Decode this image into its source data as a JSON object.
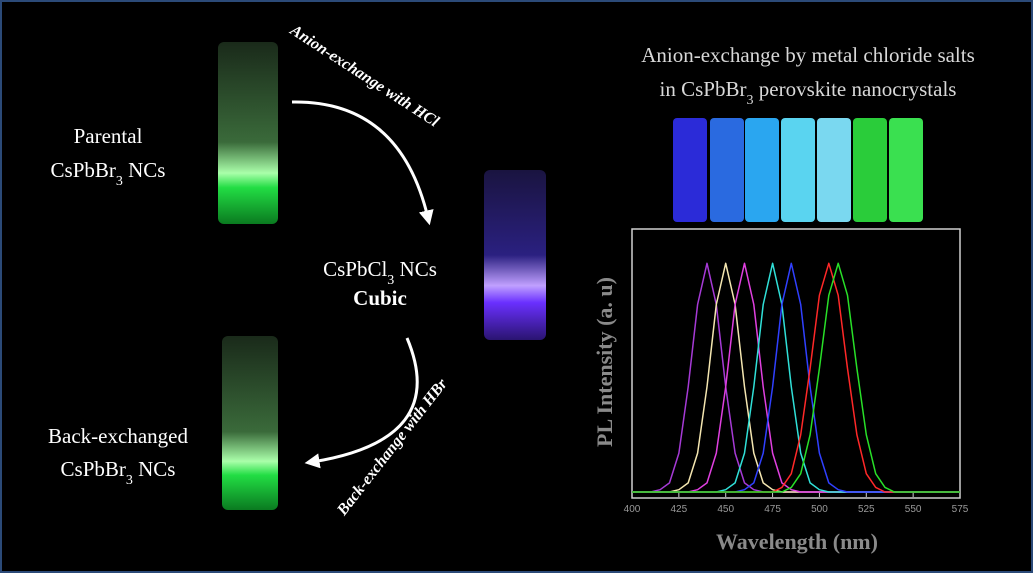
{
  "labels": {
    "arrow_top": "Anion-exchange with HCl",
    "arrow_bottom": "Back-exchange with HBr",
    "parental_line1": "Parental",
    "parental_line2": [
      "CsPbBr",
      "3",
      " NCs"
    ],
    "cubic_line1": [
      "CsPbCl",
      "3",
      " NCs"
    ],
    "cubic_line2": "Cubic",
    "back_line1": "Back-exchanged",
    "back_line2": [
      "CsPbBr",
      "3",
      " NCs"
    ]
  },
  "chart_data": {
    "type": "line",
    "title": "Anion-exchange by metal chloride salts",
    "subtitle": [
      "in CsPbBr",
      "3",
      " perovskite nanocrystals"
    ],
    "x_label": "Wavelength (nm)",
    "y_label": "PL Intensity (a. u)",
    "x": [
      400,
      405,
      410,
      415,
      420,
      425,
      430,
      435,
      440,
      445,
      450,
      455,
      460,
      465,
      470,
      475,
      480,
      485,
      490,
      495,
      500,
      505,
      510,
      515,
      520,
      525,
      530,
      535,
      540,
      545,
      550,
      555,
      560,
      565,
      570,
      575
    ],
    "xlim": [
      400,
      575
    ],
    "xticks": [
      400,
      425,
      450,
      475,
      500,
      525,
      550,
      575
    ],
    "ylim": [
      0,
      1.15
    ],
    "series": [
      {
        "color": "#a63ad6",
        "values": [
          0,
          0,
          0,
          0.01,
          0.04,
          0.17,
          0.46,
          0.82,
          1,
          0.82,
          0.46,
          0.17,
          0.04,
          0.01,
          0,
          0,
          0,
          0,
          0,
          0,
          0,
          0,
          0,
          0,
          0,
          0,
          0,
          0,
          0,
          0,
          0,
          0,
          0,
          0,
          0,
          0
        ]
      },
      {
        "color": "#f4e6b0",
        "values": [
          0,
          0,
          0,
          0,
          0,
          0.01,
          0.04,
          0.17,
          0.46,
          0.82,
          1,
          0.82,
          0.46,
          0.17,
          0.04,
          0.01,
          0,
          0,
          0,
          0,
          0,
          0,
          0,
          0,
          0,
          0,
          0,
          0,
          0,
          0,
          0,
          0,
          0,
          0,
          0,
          0
        ]
      },
      {
        "color": "#e040e0",
        "values": [
          0,
          0,
          0,
          0,
          0,
          0,
          0,
          0.01,
          0.04,
          0.17,
          0.46,
          0.82,
          1,
          0.82,
          0.46,
          0.17,
          0.04,
          0.01,
          0,
          0,
          0,
          0,
          0,
          0,
          0,
          0,
          0,
          0,
          0,
          0,
          0,
          0,
          0,
          0,
          0,
          0
        ]
      },
      {
        "color": "#30e0d8",
        "values": [
          0,
          0,
          0,
          0,
          0,
          0,
          0,
          0,
          0,
          0,
          0.01,
          0.04,
          0.17,
          0.46,
          0.82,
          1,
          0.82,
          0.46,
          0.17,
          0.04,
          0.01,
          0,
          0,
          0,
          0,
          0,
          0,
          0,
          0,
          0,
          0,
          0,
          0,
          0,
          0,
          0
        ]
      },
      {
        "color": "#3040ff",
        "values": [
          0,
          0,
          0,
          0,
          0,
          0,
          0,
          0,
          0,
          0,
          0,
          0,
          0.01,
          0.04,
          0.17,
          0.46,
          0.82,
          1,
          0.82,
          0.46,
          0.17,
          0.04,
          0.01,
          0,
          0,
          0,
          0,
          0,
          0,
          0,
          0,
          0,
          0,
          0,
          0,
          0
        ]
      },
      {
        "color": "#ff2828",
        "values": [
          0,
          0,
          0,
          0,
          0,
          0,
          0,
          0,
          0,
          0,
          0,
          0,
          0,
          0,
          0,
          0,
          0.02,
          0.08,
          0.25,
          0.54,
          0.86,
          1,
          0.86,
          0.54,
          0.25,
          0.08,
          0.02,
          0,
          0,
          0,
          0,
          0,
          0,
          0,
          0,
          0
        ]
      },
      {
        "color": "#28e028",
        "values": [
          0,
          0,
          0,
          0,
          0,
          0,
          0,
          0,
          0,
          0,
          0,
          0,
          0,
          0,
          0,
          0,
          0,
          0.02,
          0.08,
          0.25,
          0.54,
          0.86,
          1,
          0.86,
          0.54,
          0.25,
          0.08,
          0.02,
          0,
          0,
          0,
          0,
          0,
          0,
          0,
          0
        ]
      }
    ]
  }
}
